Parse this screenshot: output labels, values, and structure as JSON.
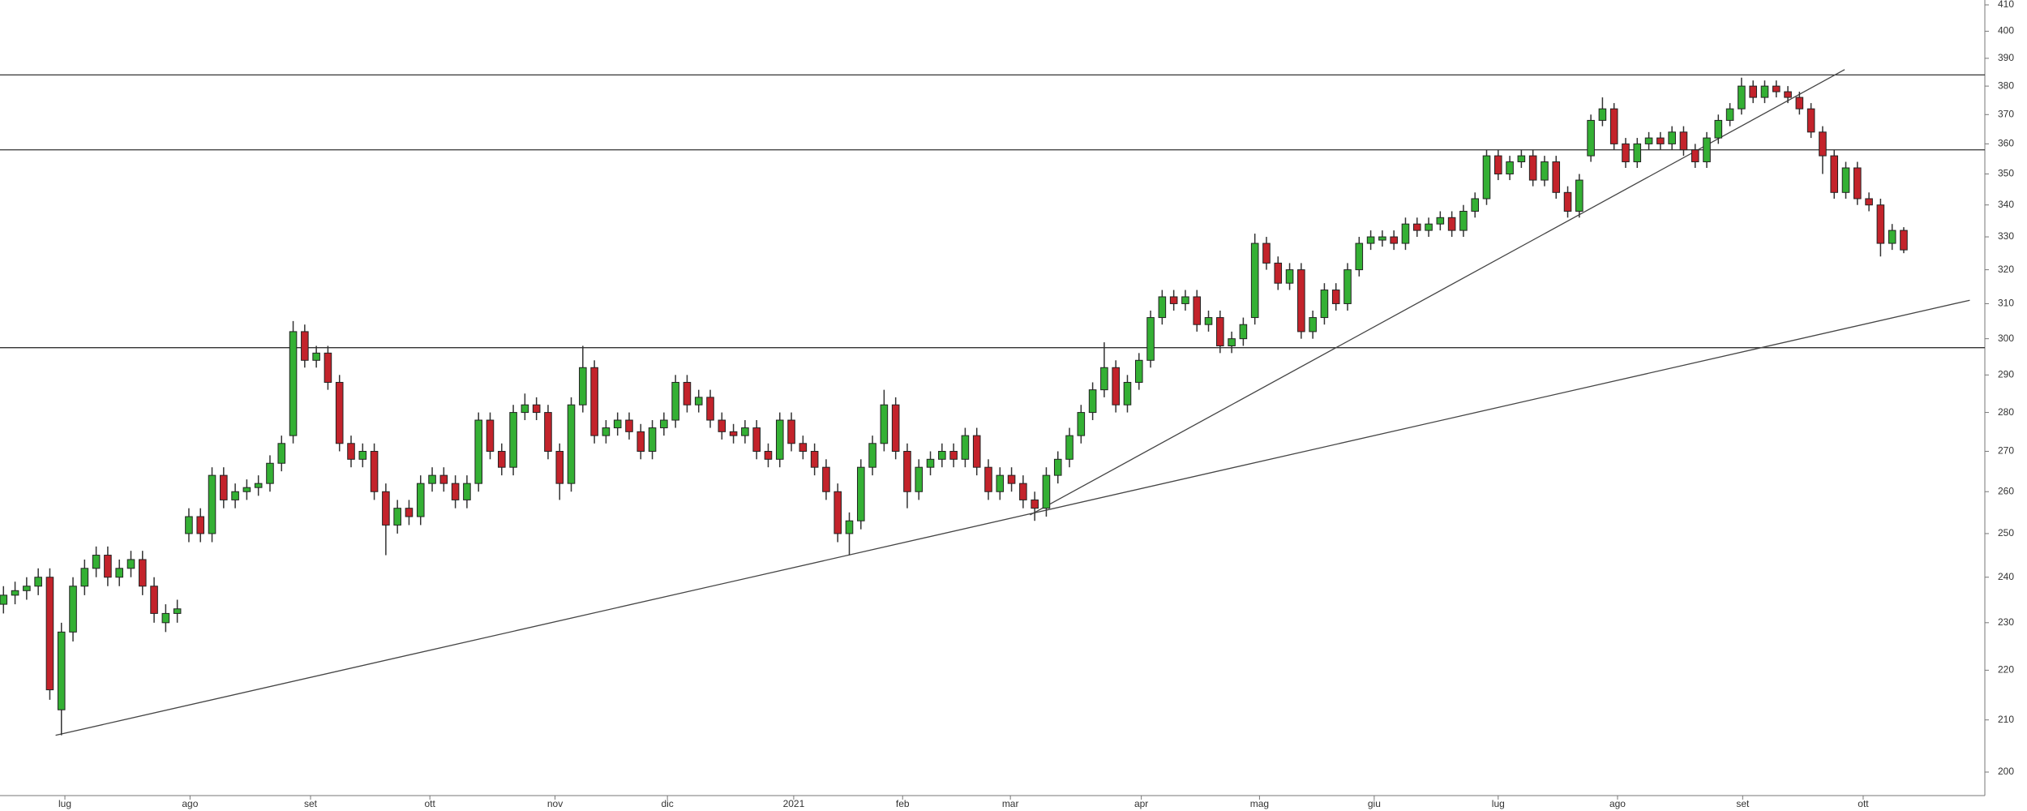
{
  "chart_data": {
    "type": "candlestick",
    "xlim": [
      -0.3,
      171
    ],
    "xticks": [
      {
        "value": 5.3,
        "label": "lug"
      },
      {
        "value": 16.1,
        "label": "ago"
      },
      {
        "value": 26.5,
        "label": "set"
      },
      {
        "value": 36.8,
        "label": "ott"
      },
      {
        "value": 47.6,
        "label": "nov"
      },
      {
        "value": 57.3,
        "label": "dic"
      },
      {
        "value": 68.2,
        "label": "2021"
      },
      {
        "value": 77.6,
        "label": "feb"
      },
      {
        "value": 86.9,
        "label": "mar"
      },
      {
        "value": 98.2,
        "label": "apr"
      },
      {
        "value": 108.4,
        "label": "mag"
      },
      {
        "value": 118.3,
        "label": "giu"
      },
      {
        "value": 129.0,
        "label": "lug"
      },
      {
        "value": 139.3,
        "label": "ago"
      },
      {
        "value": 150.1,
        "label": "set"
      },
      {
        "value": 160.5,
        "label": "ott"
      }
    ],
    "ylim": [
      200,
      410
    ],
    "yticks": [
      200,
      210,
      220,
      230,
      240,
      250,
      260,
      270,
      280,
      290,
      300,
      310,
      320,
      330,
      340,
      350,
      360,
      370,
      380,
      390,
      400,
      410
    ],
    "log_scale": true,
    "up_color": "#34b034",
    "down_color": "#c3232b",
    "open": [
      234,
      236,
      237,
      238,
      240,
      212,
      228,
      238,
      242,
      245,
      240,
      242,
      244,
      238,
      230,
      232,
      250,
      254,
      250,
      264,
      258,
      260,
      261,
      262,
      267,
      274,
      302,
      294,
      296,
      288,
      272,
      268,
      270,
      260,
      252,
      256,
      254,
      262,
      264,
      262,
      258,
      262,
      278,
      270,
      266,
      280,
      282,
      280,
      270,
      262,
      282,
      292,
      274,
      276,
      278,
      275,
      270,
      276,
      278,
      288,
      282,
      284,
      278,
      275,
      274,
      276,
      270,
      268,
      278,
      272,
      270,
      266,
      260,
      250,
      253,
      266,
      272,
      282,
      270,
      260,
      266,
      268,
      270,
      268,
      274,
      266,
      260,
      264,
      262,
      258,
      256,
      264,
      268,
      274,
      280,
      286,
      292,
      282,
      288,
      294,
      306,
      312,
      310,
      312,
      304,
      306,
      298,
      300,
      306,
      328,
      322,
      316,
      320,
      302,
      306,
      314,
      310,
      320,
      328,
      329,
      330,
      328,
      334,
      332,
      334,
      336,
      332,
      338,
      342,
      356,
      350,
      354,
      356,
      348,
      354,
      344,
      338,
      356,
      368,
      372,
      360,
      354,
      360,
      362,
      360,
      364,
      358,
      354,
      362,
      368,
      372,
      380,
      376,
      380,
      378,
      376,
      372,
      364,
      356,
      344,
      352,
      342,
      340,
      328,
      332
    ],
    "high": [
      238,
      239,
      240,
      242,
      242,
      230,
      240,
      244,
      247,
      247,
      244,
      246,
      246,
      240,
      234,
      235,
      256,
      256,
      266,
      266,
      262,
      263,
      264,
      269,
      274,
      305,
      304,
      298,
      298,
      290,
      274,
      272,
      272,
      262,
      258,
      258,
      264,
      266,
      266,
      264,
      264,
      280,
      280,
      272,
      282,
      285,
      284,
      282,
      272,
      284,
      298,
      294,
      278,
      280,
      280,
      277,
      278,
      280,
      290,
      290,
      286,
      286,
      280,
      277,
      278,
      278,
      272,
      280,
      280,
      274,
      272,
      268,
      262,
      255,
      268,
      274,
      286,
      284,
      272,
      268,
      270,
      272,
      272,
      276,
      276,
      268,
      266,
      266,
      264,
      260,
      266,
      270,
      276,
      282,
      288,
      299,
      294,
      290,
      296,
      308,
      314,
      314,
      314,
      314,
      308,
      308,
      302,
      306,
      331,
      330,
      324,
      322,
      322,
      308,
      316,
      316,
      322,
      330,
      332,
      332,
      332,
      336,
      336,
      336,
      338,
      338,
      340,
      344,
      358,
      358,
      356,
      358,
      358,
      356,
      356,
      346,
      350,
      370,
      376,
      374,
      362,
      362,
      364,
      364,
      366,
      366,
      360,
      364,
      370,
      374,
      383,
      382,
      382,
      382,
      380,
      378,
      374,
      366,
      358,
      354,
      354,
      344,
      342,
      334,
      333
    ],
    "low": [
      232,
      234,
      235,
      236,
      214,
      207,
      226,
      236,
      240,
      238,
      238,
      240,
      236,
      230,
      228,
      230,
      248,
      248,
      248,
      256,
      256,
      258,
      259,
      260,
      265,
      272,
      292,
      292,
      286,
      270,
      266,
      266,
      258,
      245,
      250,
      252,
      252,
      260,
      260,
      256,
      256,
      260,
      268,
      264,
      264,
      278,
      278,
      268,
      258,
      260,
      280,
      272,
      272,
      274,
      273,
      268,
      268,
      274,
      276,
      280,
      280,
      276,
      273,
      272,
      272,
      268,
      266,
      266,
      270,
      268,
      264,
      258,
      248,
      245,
      251,
      264,
      270,
      268,
      256,
      258,
      264,
      266,
      266,
      266,
      264,
      258,
      258,
      260,
      256,
      253,
      254,
      262,
      266,
      272,
      278,
      284,
      280,
      280,
      286,
      292,
      304,
      308,
      308,
      302,
      302,
      296,
      296,
      298,
      304,
      320,
      314,
      314,
      300,
      300,
      304,
      308,
      308,
      318,
      326,
      327,
      326,
      326,
      330,
      330,
      332,
      330,
      330,
      336,
      340,
      348,
      348,
      352,
      346,
      346,
      342,
      336,
      336,
      354,
      366,
      358,
      352,
      352,
      358,
      358,
      358,
      356,
      352,
      352,
      360,
      366,
      370,
      374,
      374,
      376,
      374,
      370,
      362,
      350,
      342,
      342,
      340,
      338,
      324,
      326,
      325
    ],
    "close": [
      236,
      237,
      238,
      240,
      216,
      228,
      238,
      242,
      245,
      240,
      242,
      244,
      238,
      232,
      232,
      233,
      254,
      250,
      264,
      258,
      260,
      261,
      262,
      267,
      272,
      302,
      294,
      296,
      288,
      272,
      268,
      270,
      260,
      252,
      256,
      254,
      262,
      264,
      262,
      258,
      262,
      278,
      270,
      266,
      280,
      282,
      280,
      270,
      262,
      282,
      292,
      274,
      276,
      278,
      275,
      270,
      276,
      278,
      288,
      282,
      284,
      278,
      275,
      274,
      276,
      270,
      268,
      278,
      272,
      270,
      266,
      260,
      250,
      253,
      266,
      272,
      282,
      270,
      260,
      266,
      268,
      270,
      268,
      274,
      266,
      260,
      264,
      262,
      258,
      256,
      264,
      268,
      274,
      280,
      286,
      292,
      282,
      288,
      294,
      306,
      312,
      310,
      312,
      304,
      306,
      298,
      300,
      304,
      328,
      322,
      316,
      320,
      302,
      306,
      314,
      310,
      320,
      328,
      330,
      330,
      328,
      334,
      332,
      334,
      336,
      332,
      338,
      342,
      356,
      350,
      354,
      356,
      348,
      354,
      344,
      338,
      348,
      368,
      372,
      360,
      354,
      360,
      362,
      360,
      364,
      358,
      354,
      362,
      368,
      372,
      380,
      376,
      380,
      378,
      376,
      372,
      364,
      356,
      344,
      352,
      342,
      340,
      328,
      332,
      326
    ],
    "trend_lines": [
      {
        "x": [
          4.5,
          169.7
        ],
        "y": [
          207,
          311
        ]
      },
      {
        "x": [
          88.6,
          158.9
        ],
        "y": [
          254.4,
          385.9
        ]
      }
    ],
    "levels": [
      384,
      358,
      297.5
    ]
  }
}
